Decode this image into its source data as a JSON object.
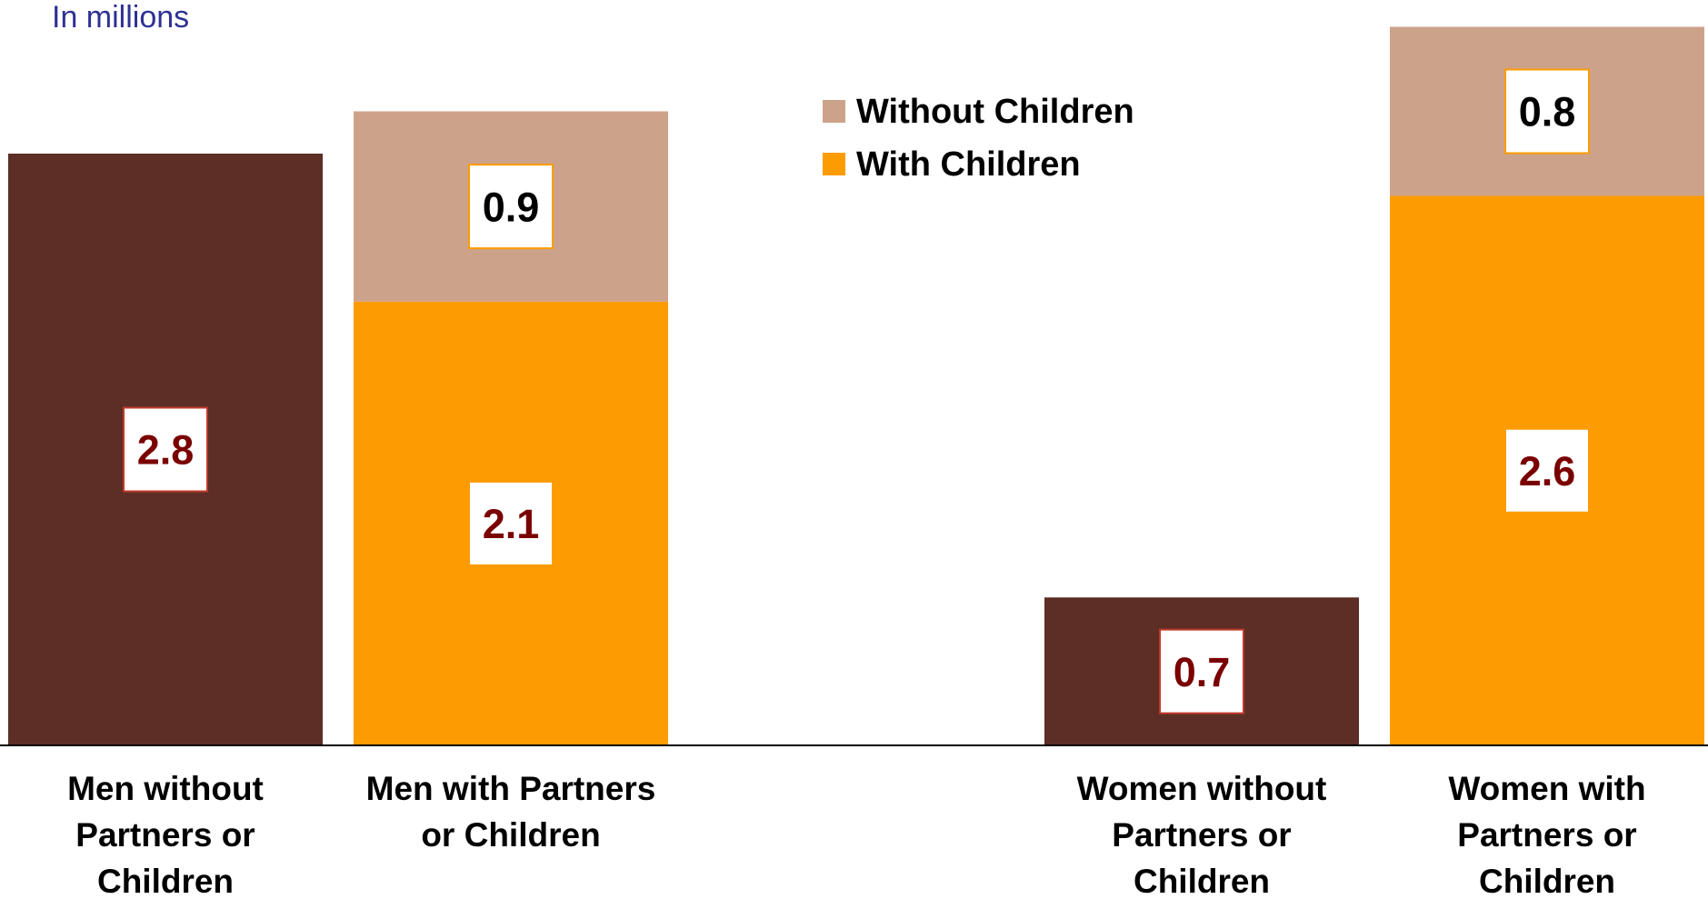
{
  "chart_data": {
    "type": "bar",
    "stacked": true,
    "unit_note": "In millions",
    "categories": [
      [
        "Men without",
        "Partners or",
        "Children"
      ],
      [
        "Men with Partners",
        "or Children"
      ],
      [
        ""
      ],
      [
        "Women without",
        "Partners or",
        "Children"
      ],
      [
        "Women with",
        "Partners or",
        "Children"
      ]
    ],
    "series": [
      {
        "values": [
          2.8,
          null,
          null,
          0.7,
          null
        ],
        "color": "#5c2e25",
        "label_color": "#7a0000",
        "label_border": "#c0392b"
      },
      {
        "name": "With Children",
        "values": [
          null,
          2.1,
          null,
          null,
          2.6
        ],
        "color": "#fd9c02",
        "label_color": "#7a0000",
        "label_border": "#fd9c02"
      },
      {
        "name": "Without Children",
        "values": [
          null,
          0.9,
          null,
          null,
          0.8
        ],
        "color": "#cda28a",
        "label_color": "#000000",
        "label_border": "#fd9c02"
      }
    ],
    "data_labels": [
      [
        "2.8",
        null,
        null,
        "0.7",
        null
      ],
      [
        null,
        "2.1",
        null,
        null,
        "2.6"
      ],
      [
        null,
        "0.9",
        null,
        null,
        "0.8"
      ]
    ],
    "legend": {
      "position": "top-center",
      "entries": [
        {
          "label": "Without Children",
          "color": "#cda28a"
        },
        {
          "label": "With Children",
          "color": "#fd9c02"
        }
      ]
    },
    "ylim": [
      0,
      3.4
    ],
    "grid": false,
    "y_axis_visible": false,
    "title": "",
    "xlabel": "",
    "ylabel": ""
  }
}
